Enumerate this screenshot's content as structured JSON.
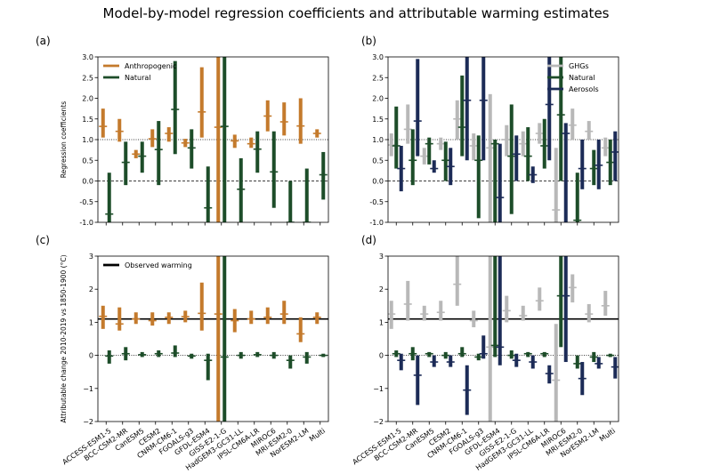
{
  "figure": {
    "title": "Model-by-model regression coefficients and attributable warming estimates"
  },
  "models": [
    "ACCESS-ESM1-5",
    "BCC-CSM2-MR",
    "CanESM5",
    "CESM2",
    "CNRM-CM6-1",
    "FGOALS-g3",
    "GFDL-ESM4",
    "GISS-E2-1-G",
    "HadGEM3-GC31-LL",
    "IPSL-CM6A-LR",
    "MIROC6",
    "MRI-ESM2-0",
    "NorESM2-LM",
    "Multi"
  ],
  "colors": {
    "anthropogenic": "#c47a2c",
    "natural": "#1d4d29",
    "ghgs": "#b8b8b8",
    "aerosols": "#1c2b57",
    "observed": "#000000"
  },
  "chart_data": [
    {
      "type": "errorbar",
      "panel_label": "(a)",
      "ylabel": "Regression coefficients",
      "ylim": [
        -1.0,
        3.0
      ],
      "yticks": [
        "-1.0",
        "-0.5",
        "0.0",
        "0.5",
        "1.0",
        "1.5",
        "2.0",
        "2.5",
        "3.0"
      ],
      "reference_lines": [
        {
          "y": 1.0,
          "style": "dotted"
        },
        {
          "y": 0.0,
          "style": "dashed"
        }
      ],
      "legend": {
        "position": "top-left"
      },
      "series": [
        {
          "name": "Anthropogenic",
          "color_key": "anthropogenic",
          "central": [
            1.32,
            1.2,
            0.65,
            1.02,
            1.15,
            0.92,
            1.67,
            1.3,
            0.97,
            0.9,
            1.57,
            1.43,
            1.33,
            1.15
          ],
          "low": [
            1.05,
            0.95,
            0.55,
            0.82,
            0.95,
            0.82,
            1.05,
            -1.0,
            0.8,
            0.8,
            1.2,
            1.1,
            0.9,
            1.05
          ],
          "high": [
            1.75,
            1.5,
            0.75,
            1.25,
            1.3,
            1.02,
            2.75,
            3.0,
            1.12,
            1.05,
            1.95,
            1.9,
            2.0,
            1.25
          ]
        },
        {
          "name": "Natural",
          "color_key": "natural",
          "central": [
            -0.8,
            0.45,
            0.6,
            0.76,
            1.73,
            0.8,
            -0.65,
            1.32,
            -0.2,
            0.77,
            0.22,
            -1.0,
            -1.0,
            0.15
          ],
          "low": [
            -1.0,
            -0.1,
            0.2,
            -0.1,
            0.65,
            0.3,
            -1.0,
            -1.0,
            -1.0,
            0.2,
            -0.65,
            -1.0,
            -1.0,
            -0.45
          ],
          "high": [
            0.2,
            0.95,
            0.95,
            1.45,
            2.9,
            1.25,
            0.35,
            3.0,
            0.55,
            1.2,
            1.2,
            0.0,
            0.3,
            0.7
          ]
        }
      ]
    },
    {
      "type": "errorbar",
      "panel_label": "(b)",
      "ylim": [
        -1.0,
        3.0
      ],
      "yticks": [
        "-1.0",
        "-0.5",
        "0.0",
        "0.5",
        "1.0",
        "1.5",
        "2.0",
        "2.5",
        "3.0"
      ],
      "reference_lines": [
        {
          "y": 1.0,
          "style": "dotted"
        },
        {
          "y": 0.0,
          "style": "dashed"
        }
      ],
      "legend": {
        "position": "top-right"
      },
      "series": [
        {
          "name": "GHGs",
          "color_key": "ghgs",
          "central": [
            0.87,
            1.25,
            0.6,
            0.9,
            1.5,
            0.85,
            0.8,
            1.0,
            0.9,
            1.15,
            -0.7,
            1.35,
            1.2,
            0.8
          ],
          "low": [
            0.6,
            0.9,
            0.4,
            0.75,
            1.0,
            0.5,
            -1.0,
            0.6,
            0.6,
            0.9,
            -1.0,
            1.0,
            1.0,
            0.6
          ],
          "high": [
            1.15,
            1.85,
            0.8,
            1.05,
            1.95,
            1.15,
            2.1,
            1.35,
            1.2,
            1.4,
            0.8,
            1.75,
            1.45,
            1.05
          ]
        },
        {
          "name": "Natural",
          "color_key": "natural",
          "central": [
            0.85,
            0.5,
            0.9,
            0.5,
            1.3,
            0.5,
            0.9,
            0.6,
            0.6,
            0.85,
            1.6,
            -0.95,
            0.3,
            0.45
          ],
          "low": [
            0.3,
            -0.1,
            0.4,
            0.0,
            0.6,
            -0.9,
            -1.0,
            -0.8,
            0.0,
            0.3,
            0.0,
            -1.0,
            -0.1,
            -0.1
          ],
          "high": [
            1.8,
            1.25,
            1.05,
            0.95,
            2.55,
            1.1,
            1.0,
            1.85,
            1.3,
            1.5,
            3.0,
            0.2,
            0.75,
            1.0
          ]
        },
        {
          "name": "Aerosols",
          "color_key": "aerosols",
          "central": [
            0.3,
            1.45,
            0.3,
            0.35,
            1.95,
            1.95,
            -0.4,
            0.65,
            0.15,
            1.85,
            1.15,
            0.3,
            0.38,
            0.7
          ],
          "low": [
            -0.25,
            0.6,
            0.2,
            -0.1,
            0.5,
            0.5,
            -1.0,
            0.0,
            -0.05,
            0.5,
            -1.0,
            -0.2,
            -0.2,
            0.0
          ],
          "high": [
            0.85,
            2.95,
            0.5,
            0.8,
            3.0,
            3.0,
            0.9,
            1.1,
            0.35,
            3.0,
            1.4,
            1.0,
            1.0,
            1.2
          ]
        }
      ]
    },
    {
      "type": "errorbar",
      "panel_label": "(c)",
      "ylabel": "Attributable change 2010-2019 vs 1850-1900 (°C)",
      "ylim": [
        -2,
        3
      ],
      "yticks": [
        "−2",
        "−1",
        "0",
        "1",
        "2",
        "3"
      ],
      "reference_lines": [
        {
          "y": 1.1,
          "style": "solid-observed"
        },
        {
          "y": 0.0,
          "style": "dotted"
        }
      ],
      "legend": {
        "position": "top-left",
        "entries": [
          "Observed warming"
        ]
      },
      "series": [
        {
          "name": "Anthropogenic",
          "color_key": "anthropogenic",
          "central": [
            1.18,
            0.95,
            1.1,
            1.05,
            1.15,
            1.17,
            1.27,
            1.25,
            1.05,
            1.1,
            1.15,
            1.25,
            0.65,
            1.15
          ],
          "low": [
            0.8,
            0.75,
            0.95,
            0.9,
            0.95,
            1.0,
            0.75,
            -2.0,
            0.7,
            0.95,
            0.95,
            0.95,
            0.4,
            0.95
          ],
          "high": [
            1.5,
            1.45,
            1.3,
            1.3,
            1.3,
            1.35,
            2.2,
            3.0,
            1.4,
            1.35,
            1.45,
            1.65,
            1.15,
            1.3
          ]
        },
        {
          "name": "Natural",
          "color_key": "natural",
          "central": [
            -0.02,
            0.05,
            0.02,
            0.05,
            0.07,
            -0.02,
            -0.15,
            -0.05,
            0.0,
            0.02,
            0.0,
            -0.15,
            -0.05,
            0.0
          ],
          "low": [
            -0.25,
            -0.15,
            -0.05,
            -0.05,
            -0.05,
            -0.1,
            -0.75,
            -2.0,
            -0.1,
            -0.05,
            -0.1,
            -0.4,
            -0.25,
            -0.05
          ],
          "high": [
            0.15,
            0.25,
            0.1,
            0.15,
            0.3,
            0.05,
            0.05,
            3.0,
            0.1,
            0.1,
            0.1,
            0.0,
            0.1,
            0.05
          ]
        }
      ]
    },
    {
      "type": "errorbar",
      "panel_label": "(d)",
      "ylim": [
        -2,
        3
      ],
      "yticks": [
        "−2",
        "−1",
        "0",
        "1",
        "2",
        "3"
      ],
      "reference_lines": [
        {
          "y": 1.1,
          "style": "solid-observed"
        },
        {
          "y": 0.0,
          "style": "dotted"
        }
      ],
      "series": [
        {
          "name": "GHGs",
          "color_key": "ghgs",
          "central": [
            1.25,
            1.55,
            1.25,
            1.3,
            2.15,
            1.05,
            0.25,
            1.35,
            1.2,
            1.65,
            -0.75,
            2.05,
            1.25,
            1.5
          ],
          "low": [
            0.8,
            1.05,
            1.05,
            1.05,
            1.5,
            0.85,
            -2.0,
            1.0,
            1.05,
            1.35,
            -2.0,
            1.6,
            1.0,
            1.2
          ],
          "high": [
            1.65,
            2.25,
            1.5,
            1.65,
            3.0,
            1.35,
            3.0,
            1.8,
            1.5,
            2.05,
            0.95,
            2.45,
            1.55,
            1.95
          ]
        },
        {
          "name": "Natural",
          "color_key": "natural",
          "central": [
            0.05,
            0.05,
            0.05,
            0.0,
            0.05,
            -0.05,
            0.3,
            0.0,
            0.05,
            0.05,
            1.8,
            -0.25,
            -0.05,
            0.0
          ],
          "low": [
            -0.05,
            -0.15,
            -0.05,
            -0.1,
            -0.05,
            -0.15,
            -0.05,
            -0.1,
            -0.05,
            -0.05,
            0.25,
            -0.4,
            -0.2,
            -0.05
          ],
          "high": [
            0.15,
            0.25,
            0.1,
            0.1,
            0.25,
            0.05,
            3.0,
            0.15,
            0.1,
            0.1,
            3.0,
            0.0,
            0.1,
            0.05
          ]
        },
        {
          "name": "Aerosols",
          "color_key": "aerosols",
          "central": [
            -0.15,
            -0.6,
            -0.2,
            -0.2,
            -1.05,
            0.05,
            0.25,
            -0.15,
            -0.2,
            -0.55,
            1.8,
            -0.7,
            -0.25,
            -0.35
          ],
          "low": [
            -0.45,
            -1.5,
            -0.35,
            -0.35,
            -1.8,
            -0.1,
            -0.3,
            -0.35,
            -0.4,
            -0.85,
            -0.2,
            -1.2,
            -0.4,
            -0.7
          ],
          "high": [
            0.05,
            0.0,
            0.0,
            0.0,
            -0.3,
            0.6,
            3.0,
            0.05,
            0.0,
            -0.3,
            3.0,
            -0.2,
            -0.05,
            -0.05
          ]
        }
      ]
    }
  ]
}
